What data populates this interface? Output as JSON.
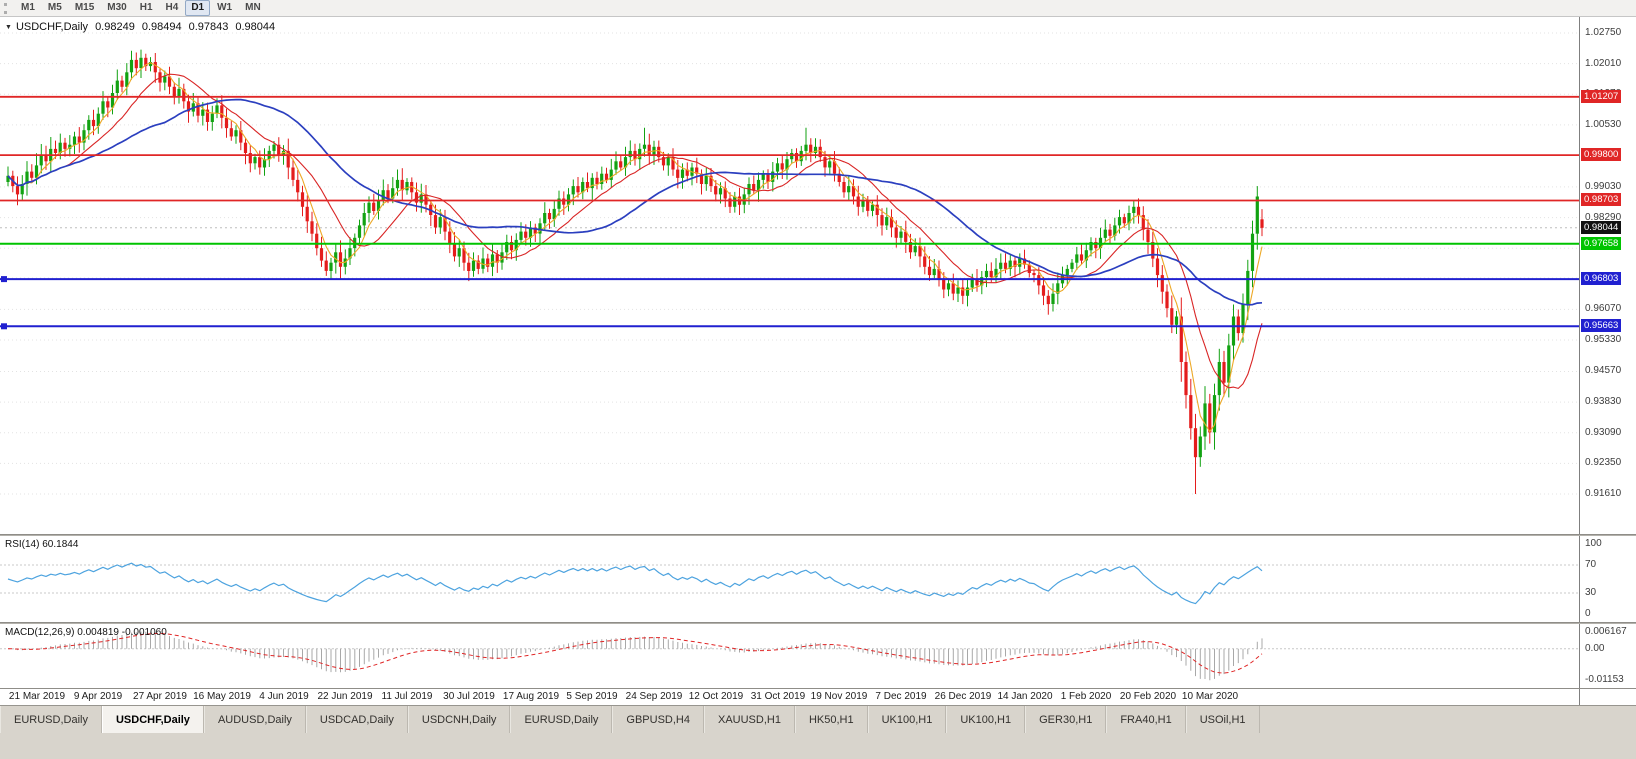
{
  "toolbar": {
    "timeframes": [
      "M1",
      "M5",
      "M15",
      "M30",
      "H1",
      "H4",
      "D1",
      "W1",
      "MN"
    ],
    "active_timeframe": "D1"
  },
  "chart": {
    "symbol": "USDCHF,Daily",
    "ohlc": {
      "open": "0.98249",
      "high": "0.98494",
      "low": "0.97843",
      "close": "0.98044"
    },
    "price_axis": {
      "labels": [
        {
          "text": "1.02750",
          "value": 1.0275
        },
        {
          "text": "1.02010",
          "value": 1.0201
        },
        {
          "text": "1.01270",
          "value": 1.0127
        },
        {
          "text": "1.00530",
          "value": 1.0053
        },
        {
          "text": "0.99030",
          "value": 0.9903
        },
        {
          "text": "0.98290",
          "value": 0.9829
        },
        {
          "text": "0.97550",
          "value": 0.9755
        },
        {
          "text": "0.96070",
          "value": 0.9607
        },
        {
          "text": "0.95330",
          "value": 0.9533
        },
        {
          "text": "0.94570",
          "value": 0.9457
        },
        {
          "text": "0.93830",
          "value": 0.9383
        },
        {
          "text": "0.93090",
          "value": 0.9309
        },
        {
          "text": "0.92350",
          "value": 0.9235
        },
        {
          "text": "0.91610",
          "value": 0.9161
        }
      ],
      "grid_extra": [
        0.9979,
        0.9683
      ]
    },
    "hlines": [
      {
        "label": "1.01207",
        "value": 1.01207,
        "color": "#e02626",
        "width": 1.8,
        "handle": false
      },
      {
        "label": "0.99800",
        "value": 0.998,
        "color": "#e02626",
        "width": 1.8,
        "handle": false
      },
      {
        "label": "0.98703",
        "value": 0.98703,
        "color": "#e02626",
        "width": 1.8,
        "handle": false
      },
      {
        "label": "0.97658",
        "value": 0.97658,
        "color": "#00c400",
        "width": 2,
        "handle": false
      },
      {
        "label": "0.96803",
        "value": 0.96803,
        "color": "#2020d0",
        "width": 2,
        "handle": true
      },
      {
        "label": "0.95663",
        "value": 0.95663,
        "color": "#2020d0",
        "width": 2,
        "handle": true
      }
    ],
    "bid_badge": {
      "text": "0.98044",
      "value": 0.98044,
      "bg": "#111111"
    },
    "date_axis": {
      "labels": [
        "21 Mar 2019",
        "9 Apr 2019",
        "27 Apr 2019",
        "16 May 2019",
        "4 Jun 2019",
        "22 Jun 2019",
        "11 Jul 2019",
        "30 Jul 2019",
        "17 Aug 2019",
        "5 Sep 2019",
        "24 Sep 2019",
        "12 Oct 2019",
        "31 Oct 2019",
        "19 Nov 2019",
        "7 Dec 2019",
        "26 Dec 2019",
        "14 Jan 2020",
        "1 Feb 2020",
        "20 Feb 2020",
        "10 Mar 2020"
      ],
      "first_index": 6,
      "index_step": 13
    }
  },
  "rsi_panel": {
    "label": "RSI(14) 60.1844",
    "period": 14,
    "line_color": "#4da3df",
    "level_lines": [
      70,
      30
    ],
    "axis_labels": [
      {
        "text": "100",
        "value": 100
      },
      {
        "text": "70",
        "value": 70
      },
      {
        "text": "30",
        "value": 30
      },
      {
        "text": "0",
        "value": 0
      }
    ]
  },
  "macd_panel": {
    "label": "MACD(12,26,9) 0.004819 -0.001060",
    "fast": 12,
    "slow": 26,
    "signal": 9,
    "histogram_color": "#a8a8a8",
    "signal_color": "#e02626",
    "axis_labels": [
      {
        "text": "0.006167",
        "value": 0.006167
      },
      {
        "text": "0.00",
        "value": 0
      },
      {
        "text": "-0.01153",
        "value": -0.01153
      }
    ]
  },
  "tabs": {
    "items": [
      "EURUSD,Daily",
      "USDCHF,Daily",
      "AUDUSD,Daily",
      "USDCAD,Daily",
      "USDCNH,Daily",
      "EURUSD,Daily",
      "GBPUSD,H4",
      "XAUUSD,H1",
      "HK50,H1",
      "UK100,H1",
      "UK100,H1",
      "GER30,H1",
      "FRA40,H1",
      "USOil,H1"
    ],
    "active_index": 1
  },
  "colors": {
    "candle_up": "#12a212",
    "candle_down": "#e41c1c",
    "grid": "#e3e3e3",
    "bid_line": "#bdbdbd",
    "level_dash": "#c8c8c8"
  },
  "chart_data": {
    "type": "candlestick",
    "symbol": "USDCHF",
    "timeframe": "Daily",
    "title": "USDCHF,Daily",
    "ylim": [
      0.9161,
      1.0275
    ],
    "last_bar": {
      "open": 0.98249,
      "high": 0.98494,
      "low": 0.97843,
      "close": 0.98044
    },
    "closes": [
      0.993,
      0.9905,
      0.9885,
      0.991,
      0.994,
      0.9925,
      0.9955,
      0.998,
      0.9965,
      0.9995,
      0.9985,
      1.001,
      0.9995,
      1.0005,
      1.0025,
      1.001,
      1.004,
      1.0065,
      1.005,
      1.008,
      1.011,
      1.0095,
      1.013,
      1.016,
      1.0145,
      1.018,
      1.021,
      1.019,
      1.0215,
      1.0195,
      1.0205,
      1.018,
      1.0155,
      1.017,
      1.0145,
      1.012,
      1.014,
      1.011,
      1.0085,
      1.0105,
      1.0075,
      1.009,
      1.006,
      1.008,
      1.01,
      1.007,
      1.0045,
      1.0025,
      1.004,
      1.001,
      0.9985,
      0.996,
      0.9975,
      0.995,
      0.997,
      0.999,
      1.0005,
      0.998,
      0.999,
      0.995,
      0.992,
      0.989,
      0.9855,
      0.982,
      0.979,
      0.9755,
      0.9725,
      0.97,
      0.972,
      0.9745,
      0.971,
      0.973,
      0.9755,
      0.978,
      0.981,
      0.984,
      0.9865,
      0.9845,
      0.987,
      0.9895,
      0.9875,
      0.99,
      0.992,
      0.9895,
      0.9915,
      0.989,
      0.9865,
      0.9885,
      0.986,
      0.9835,
      0.9805,
      0.983,
      0.9795,
      0.9765,
      0.9735,
      0.9755,
      0.972,
      0.97,
      0.9725,
      0.9705,
      0.973,
      0.971,
      0.974,
      0.972,
      0.9745,
      0.977,
      0.975,
      0.9775,
      0.9795,
      0.978,
      0.9805,
      0.979,
      0.9815,
      0.984,
      0.9825,
      0.985,
      0.9875,
      0.986,
      0.9885,
      0.9905,
      0.989,
      0.9915,
      0.99,
      0.9925,
      0.991,
      0.9935,
      0.992,
      0.9945,
      0.9965,
      0.995,
      0.9975,
      0.999,
      0.997,
      0.9995,
      1.0005,
      0.998,
      1.0,
      0.9975,
      0.9955,
      0.9975,
      0.9945,
      0.9925,
      0.9945,
      0.993,
      0.995,
      0.9935,
      0.991,
      0.993,
      0.9905,
      0.9885,
      0.99,
      0.9875,
      0.9855,
      0.988,
      0.986,
      0.9885,
      0.991,
      0.9895,
      0.992,
      0.9935,
      0.9915,
      0.994,
      0.996,
      0.9945,
      0.997,
      0.9985,
      0.9965,
      0.999,
      1.0005,
      0.9985,
      1.0,
      0.9975,
      0.995,
      0.9965,
      0.9935,
      0.9915,
      0.989,
      0.9905,
      0.988,
      0.9855,
      0.987,
      0.9845,
      0.986,
      0.9835,
      0.981,
      0.983,
      0.9805,
      0.978,
      0.9795,
      0.977,
      0.9745,
      0.976,
      0.9735,
      0.971,
      0.969,
      0.9705,
      0.968,
      0.9655,
      0.967,
      0.9645,
      0.966,
      0.964,
      0.966,
      0.968,
      0.9665,
      0.9685,
      0.97,
      0.9685,
      0.9705,
      0.972,
      0.9705,
      0.9725,
      0.971,
      0.973,
      0.9715,
      0.9695,
      0.969,
      0.9665,
      0.964,
      0.962,
      0.9645,
      0.967,
      0.969,
      0.9705,
      0.972,
      0.974,
      0.9725,
      0.975,
      0.977,
      0.9755,
      0.978,
      0.98,
      0.9785,
      0.981,
      0.983,
      0.9815,
      0.984,
      0.9855,
      0.9835,
      0.98,
      0.977,
      0.973,
      0.969,
      0.965,
      0.961,
      0.957,
      0.959,
      0.948,
      0.94,
      0.932,
      0.925,
      0.93,
      0.938,
      0.931,
      0.94,
      0.948,
      0.943,
      0.952,
      0.959,
      0.955,
      0.962,
      0.97,
      0.979,
      0.988,
      0.98044
    ],
    "overrides": {
      "28": {
        "high": 1.0235
      },
      "134": {
        "high": 1.0046
      },
      "168": {
        "high": 1.0046
      },
      "250": {
        "low": 0.9161
      },
      "263": {
        "high": 0.9905
      },
      "264": {
        "open": 0.98249,
        "high": 0.98494,
        "low": 0.97843,
        "close": 0.98044
      }
    },
    "moving_averages": [
      {
        "period": 5,
        "color": "#eda826",
        "width": 1.1
      },
      {
        "period": 13,
        "color": "#d92525",
        "width": 1.1
      },
      {
        "period": 34,
        "color": "#2b3fbf",
        "width": 1.7
      }
    ]
  }
}
